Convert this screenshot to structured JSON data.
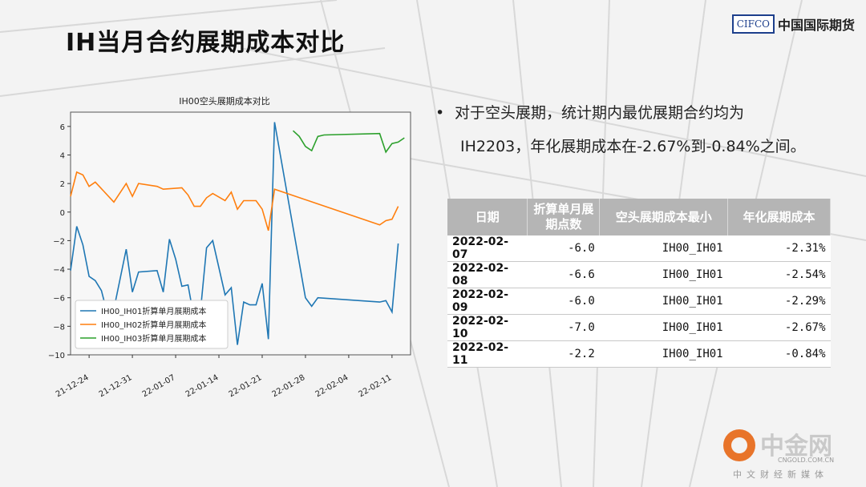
{
  "title": "IH当月合约展期成本对比",
  "logo": {
    "box_text": "CIFCO",
    "name": "中国国际期货"
  },
  "bullet": {
    "line1": "对于空头展期，统计期内最优展期合约均为",
    "line2": "IH2203，年化展期成本在-2.67%到-0.84%之间。"
  },
  "table": {
    "headers": [
      "日期",
      "折算单月展期点数",
      "空头展期成本最小",
      "年化展期成本"
    ],
    "rows": [
      [
        "2022-02-07",
        "-6.0",
        "IH00_IH01",
        "-2.31%"
      ],
      [
        "2022-02-08",
        "-6.6",
        "IH00_IH01",
        "-2.54%"
      ],
      [
        "2022-02-09",
        "-6.0",
        "IH00_IH01",
        "-2.29%"
      ],
      [
        "2022-02-10",
        "-7.0",
        "IH00_IH01",
        "-2.67%"
      ],
      [
        "2022-02-11",
        "-2.2",
        "IH00_IH01",
        "-0.84%"
      ]
    ]
  },
  "watermark": {
    "name": "中金网",
    "url": "CNGOLD.COM.CN",
    "sub": "中文财经新媒体"
  },
  "chart_data": {
    "type": "line",
    "title": "IH00空头展期成本对比",
    "ylim": [
      -10,
      7
    ],
    "yticks": [
      6,
      4,
      2,
      0,
      -2,
      -4,
      -6,
      -8,
      -10
    ],
    "ytick_labels": [
      "6",
      "4",
      "2",
      "0",
      "−2",
      "−4",
      "−6",
      "−8",
      "−10"
    ],
    "xlim": [
      0,
      55
    ],
    "xticks": [
      3,
      10,
      17,
      24,
      31,
      38,
      45,
      52
    ],
    "xtick_labels": [
      "21-12-24",
      "21-12-31",
      "22-01-07",
      "22-01-14",
      "22-01-21",
      "22-01-28",
      "22-02-04",
      "22-02-11"
    ],
    "legend_position": "lower-left",
    "series": [
      {
        "name": "IH00_IH01折算单月展期成本",
        "color": "#1f77b4",
        "x": [
          0,
          1,
          2,
          3,
          4,
          5,
          6,
          7,
          9,
          10,
          11,
          14,
          15,
          16,
          17,
          18,
          19,
          20,
          21,
          22,
          23,
          25,
          26,
          27,
          28,
          29,
          30,
          31,
          32,
          33,
          38,
          39,
          40,
          50,
          51,
          52,
          53
        ],
        "y": [
          -4.1,
          -1.0,
          -2.3,
          -4.5,
          -4.8,
          -5.5,
          -7.2,
          -6.8,
          -2.6,
          -5.6,
          -4.2,
          -4.1,
          -5.6,
          -1.9,
          -3.3,
          -5.2,
          -5.1,
          -7.5,
          -7.0,
          -2.5,
          -2.0,
          -5.8,
          -5.3,
          -9.3,
          -6.3,
          -6.5,
          -6.5,
          -5.0,
          -8.9,
          6.3,
          -6.0,
          -6.6,
          -6.0,
          -6.3,
          -6.2,
          -7.0,
          -2.2
        ]
      },
      {
        "name": "IH00_IH02折算单月展期成本",
        "color": "#ff7f0e",
        "x": [
          0,
          1,
          2,
          3,
          4,
          7,
          9,
          10,
          11,
          14,
          15,
          18,
          19,
          20,
          21,
          22,
          23,
          25,
          26,
          27,
          28,
          29,
          30,
          31,
          32,
          33,
          50,
          51,
          52,
          53
        ],
        "y": [
          1.1,
          2.8,
          2.6,
          1.8,
          2.1,
          0.7,
          2.0,
          1.1,
          2.0,
          1.8,
          1.6,
          1.7,
          1.2,
          0.4,
          0.4,
          1.0,
          1.3,
          0.8,
          1.4,
          0.2,
          0.8,
          0.8,
          0.8,
          0.2,
          -1.3,
          1.6,
          -0.9,
          -0.6,
          -0.5,
          0.4
        ],
        "note_x_range_covers_all_visible_points": true
      },
      {
        "name": "IH00_IH03折算单月展期成本",
        "color": "#2ca02c",
        "x": [
          36,
          37,
          38,
          39,
          40,
          41,
          50,
          51,
          52,
          53,
          54
        ],
        "y": [
          5.7,
          5.3,
          4.6,
          4.3,
          5.3,
          5.4,
          5.5,
          4.2,
          4.8,
          4.9,
          5.2
        ]
      }
    ]
  }
}
